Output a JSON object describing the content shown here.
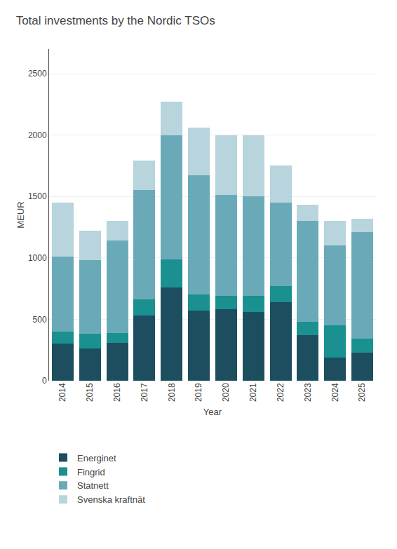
{
  "chart_data": {
    "type": "bar",
    "title": "Total investments by the Nordic TSOs",
    "xlabel": "Year",
    "ylabel": "MEUR",
    "categories": [
      "2014",
      "2015",
      "2016",
      "2017",
      "2018",
      "2019",
      "2020",
      "2021",
      "2022",
      "2023",
      "2024",
      "2025"
    ],
    "series": [
      {
        "name": "Energinet",
        "color": "#1d4e5f",
        "values": [
          300,
          260,
          310,
          530,
          760,
          570,
          580,
          560,
          640,
          370,
          190,
          230
        ]
      },
      {
        "name": "Fingrid",
        "color": "#1a9090",
        "values": [
          100,
          120,
          80,
          130,
          230,
          130,
          110,
          130,
          130,
          110,
          260,
          110
        ]
      },
      {
        "name": "Statnett",
        "color": "#6aaab8",
        "values": [
          610,
          600,
          750,
          890,
          1010,
          970,
          820,
          810,
          680,
          820,
          650,
          870
        ]
      },
      {
        "name": "Svenska kraftnät",
        "color": "#b8d4dc",
        "values": [
          440,
          240,
          160,
          240,
          270,
          390,
          490,
          500,
          300,
          130,
          200,
          110
        ]
      }
    ],
    "stacked": true,
    "ylim": [
      0,
      2700
    ],
    "yticks": [
      0,
      500,
      1000,
      1500,
      2000,
      2500
    ],
    "grid": true,
    "legend": "bottom"
  }
}
